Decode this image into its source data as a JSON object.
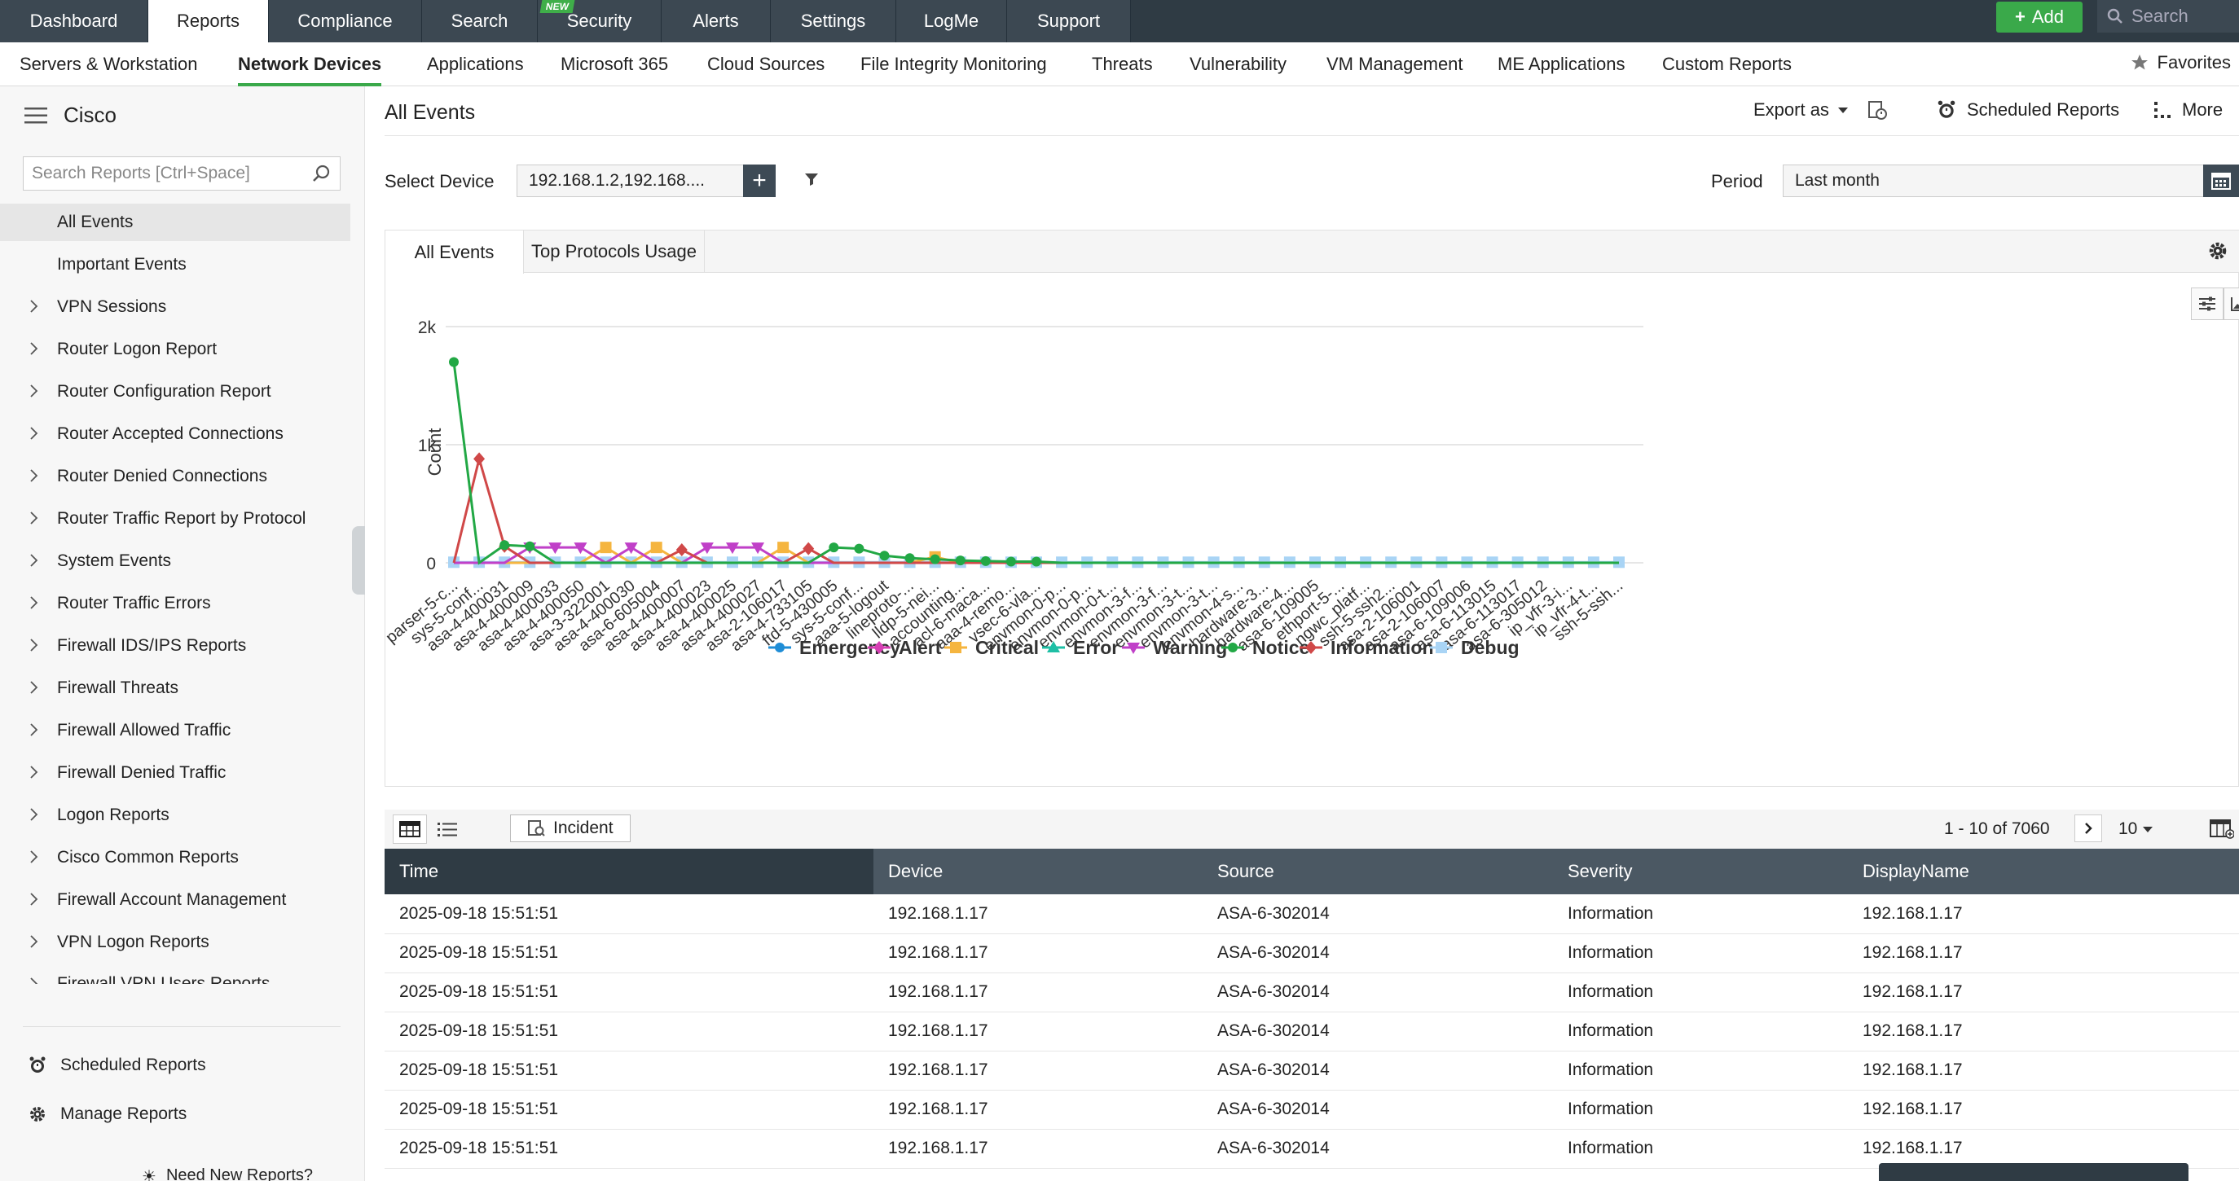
{
  "topnav": {
    "tabs": [
      "Dashboard",
      "Reports",
      "Compliance",
      "Search",
      "Security",
      "Alerts",
      "Settings",
      "LogMe",
      "Support"
    ],
    "new_badge": "NEW",
    "add_label": "Add",
    "search_label": "Search"
  },
  "subnav": {
    "tabs": [
      "Servers & Workstation",
      "Network Devices",
      "Applications",
      "Microsoft 365",
      "Cloud Sources",
      "File Integrity Monitoring",
      "Threats",
      "Vulnerability",
      "VM Management",
      "ME Applications",
      "Custom Reports"
    ],
    "favorites": "Favorites"
  },
  "sidebar": {
    "title": "Cisco",
    "search_placeholder": "Search Reports [Ctrl+Space]",
    "items": [
      "All Events",
      "Important Events",
      "VPN Sessions",
      "Router Logon Report",
      "Router Configuration Report",
      "Router Accepted Connections",
      "Router Denied Connections",
      "Router Traffic Report by Protocol",
      "System Events",
      "Router Traffic Errors",
      "Firewall IDS/IPS Reports",
      "Firewall Threats",
      "Firewall Allowed Traffic",
      "Firewall Denied Traffic",
      "Logon Reports",
      "Cisco Common Reports",
      "Firewall Account Management",
      "VPN Logon Reports",
      "Firewall VPN Users Reports"
    ],
    "scheduled": "Scheduled Reports",
    "manage": "Manage Reports",
    "need_new": "Need New Reports?"
  },
  "main": {
    "title": "All Events",
    "export": "Export as",
    "scheduled": "Scheduled Reports",
    "more": "More",
    "select_device_label": "Select Device",
    "device_value": "192.168.1.2,192.168....",
    "period_label": "Period",
    "period_value": "Last month",
    "chart_tabs": [
      "All Events",
      "Top Protocols Usage"
    ]
  },
  "chart_data": {
    "type": "line",
    "ylabel": "Count",
    "yticks": [
      "0",
      "1k",
      "2k"
    ],
    "ylim": [
      0,
      2000
    ],
    "categories": [
      "parser-5-c...",
      "sys-5-conf...",
      "asa-4-400031",
      "asa-4-400009",
      "asa-4-400033",
      "asa-4-400050",
      "asa-3-322001",
      "asa-4-400030",
      "asa-6-605004",
      "asa-4-400007",
      "asa-4-400023",
      "asa-4-400025",
      "asa-4-400027",
      "asa-2-106017",
      "asa-4-733105",
      "ftd-5-430005",
      "sys-5-conf...",
      "aaa-5-logout",
      "lineproto-...",
      "lldp-5-nei...",
      "accounting...",
      "acl-6-maca...",
      "aaa-4-remo...",
      "vsec-6-vla...",
      "envmon-0-p...",
      "envmon-0-p...",
      "envmon-0-t...",
      "envmon-3-f...",
      "envmon-3-f...",
      "envmon-3-t...",
      "envmon-3-t...",
      "envmon-4-s...",
      "hardware-3...",
      "hardware-4...",
      "asa-6-109005",
      "ethport-5-...",
      "ngwc_platf...",
      "ssh-5-ssh2...",
      "asa-2-106001",
      "asa-2-106007",
      "asa-6-109006",
      "asa-6-113015",
      "asa-6-113017",
      "asa-6-305012",
      "ip_vfr-3-i...",
      "ip_vfr-4-t...",
      "ssh-5-ssh..."
    ],
    "legend": [
      {
        "name": "Emergency",
        "color": "#1f8dd6",
        "marker": "circle"
      },
      {
        "name": "Alert",
        "color": "#d63fb4",
        "marker": "diamond"
      },
      {
        "name": "Critical",
        "color": "#f5b53f",
        "marker": "square"
      },
      {
        "name": "Error",
        "color": "#1fbfa5",
        "marker": "triangle"
      },
      {
        "name": "Warning",
        "color": "#c040c8",
        "marker": "triangle-down"
      },
      {
        "name": "Notice",
        "color": "#22a845",
        "marker": "circle"
      },
      {
        "name": "Information",
        "color": "#d04848",
        "marker": "diamond"
      },
      {
        "name": "Debug",
        "color": "#a9d4f5",
        "marker": "square"
      }
    ],
    "notice": [
      1700,
      0,
      150,
      140,
      0,
      0,
      0,
      0,
      0,
      0,
      0,
      0,
      0,
      0,
      0,
      130,
      120,
      60,
      40,
      30,
      20,
      15,
      10,
      10,
      0,
      0,
      0,
      0,
      0,
      0,
      0,
      0,
      0,
      0,
      0,
      0,
      0,
      0,
      0,
      0,
      0,
      0,
      0,
      0,
      0,
      0,
      0
    ],
    "information": [
      0,
      880,
      140,
      0,
      0,
      0,
      0,
      0,
      0,
      110,
      0,
      0,
      0,
      0,
      120,
      0,
      0,
      0,
      0,
      0,
      0,
      0,
      0,
      0,
      0,
      0,
      0,
      0,
      0,
      0,
      0,
      0,
      0,
      0,
      0,
      0,
      0,
      0,
      0,
      0,
      0,
      0,
      0,
      0,
      0,
      0,
      0
    ],
    "warning": [
      0,
      0,
      0,
      130,
      130,
      130,
      0,
      130,
      0,
      0,
      130,
      130,
      130,
      0,
      0,
      0,
      0,
      0,
      0,
      0,
      0,
      0,
      0,
      0,
      0,
      0,
      0,
      0,
      0,
      0,
      0,
      0,
      0,
      0,
      0,
      0,
      0,
      0,
      0,
      0,
      0,
      0,
      0,
      0,
      0,
      0,
      0
    ],
    "critical": [
      0,
      0,
      0,
      0,
      0,
      0,
      130,
      0,
      130,
      0,
      0,
      0,
      0,
      130,
      0,
      0,
      0,
      0,
      0,
      50,
      0,
      0,
      0,
      0,
      0,
      0,
      0,
      0,
      0,
      0,
      0,
      0,
      0,
      0,
      0,
      0,
      0,
      0,
      0,
      0,
      0,
      0,
      0,
      0,
      0,
      0,
      0
    ],
    "debug": [
      5,
      5,
      5,
      5,
      5,
      5,
      5,
      5,
      5,
      5,
      5,
      5,
      5,
      5,
      5,
      5,
      5,
      5,
      5,
      5,
      5,
      5,
      5,
      5,
      5,
      5,
      5,
      5,
      5,
      5,
      5,
      5,
      5,
      5,
      5,
      5,
      5,
      5,
      5,
      5,
      5,
      5,
      5,
      5,
      5,
      5,
      5
    ]
  },
  "table": {
    "pager": "1 - 10 of 7060",
    "page_size": "10",
    "incident": "Incident",
    "columns": [
      "Time",
      "Device",
      "Source",
      "Severity",
      "DisplayName"
    ],
    "rows": [
      [
        "2025-09-18 15:51:51",
        "192.168.1.17",
        "ASA-6-302014",
        "Information",
        "192.168.1.17"
      ],
      [
        "2025-09-18 15:51:51",
        "192.168.1.17",
        "ASA-6-302014",
        "Information",
        "192.168.1.17"
      ],
      [
        "2025-09-18 15:51:51",
        "192.168.1.17",
        "ASA-6-302014",
        "Information",
        "192.168.1.17"
      ],
      [
        "2025-09-18 15:51:51",
        "192.168.1.17",
        "ASA-6-302014",
        "Information",
        "192.168.1.17"
      ],
      [
        "2025-09-18 15:51:51",
        "192.168.1.17",
        "ASA-6-302014",
        "Information",
        "192.168.1.17"
      ],
      [
        "2025-09-18 15:51:51",
        "192.168.1.17",
        "ASA-6-302014",
        "Information",
        "192.168.1.17"
      ],
      [
        "2025-09-18 15:51:51",
        "192.168.1.17",
        "ASA-6-302014",
        "Information",
        "192.168.1.17"
      ]
    ]
  }
}
